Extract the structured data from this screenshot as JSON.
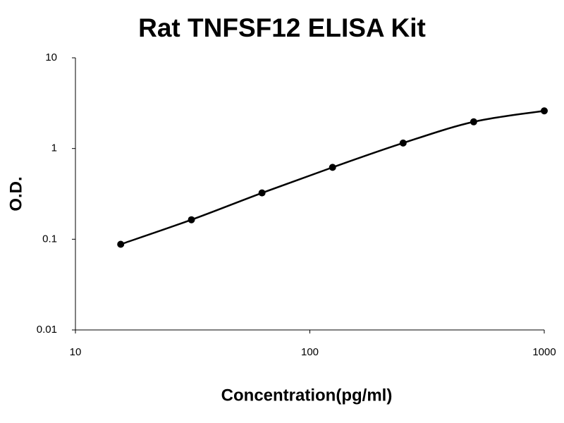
{
  "chart_data": {
    "type": "line",
    "title": "Rat TNFSF12 ELISA Kit",
    "x_label": "Concentration(pg/ml)",
    "y_label": "O.D.",
    "x": [
      15.6,
      31.25,
      62.5,
      125,
      250,
      500,
      1000
    ],
    "values": [
      0.088,
      0.164,
      0.324,
      0.62,
      1.15,
      1.97,
      2.6
    ],
    "color": "#000000",
    "xscale": "log",
    "yscale": "log",
    "xlim": [
      10,
      1000
    ],
    "ylim": [
      0.01,
      10
    ],
    "xticks": [
      10,
      100,
      1000
    ],
    "yticks": [
      0.01,
      0.1,
      1,
      10
    ]
  }
}
